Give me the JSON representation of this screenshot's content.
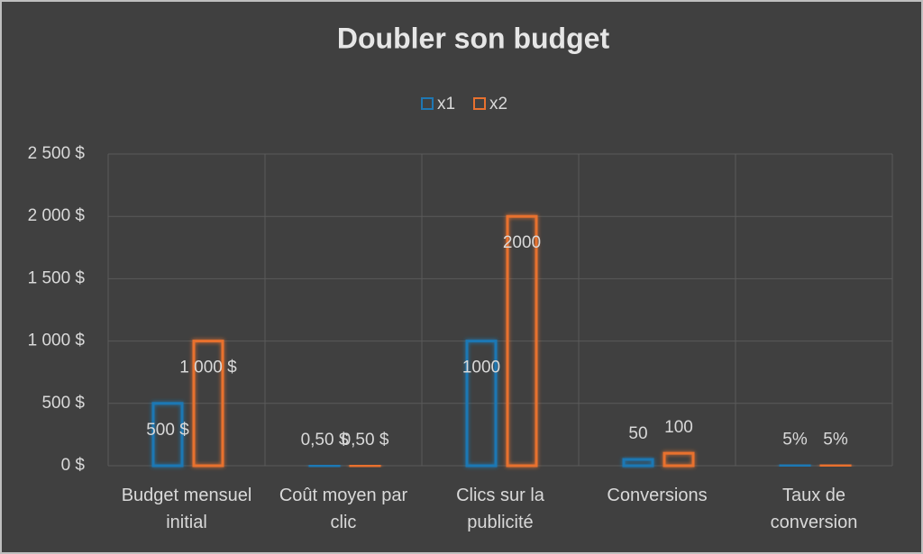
{
  "chart_data": {
    "type": "bar",
    "title": "Doubler son budget",
    "categories": [
      "Budget mensuel initial",
      "Coût moyen par clic",
      "Clics sur la publicité",
      "Conversions",
      "Taux de conversion"
    ],
    "series": [
      {
        "name": "x1",
        "color": "#1f78b4",
        "values": [
          500,
          0.5,
          1000,
          50,
          5
        ],
        "value_labels": [
          "500 $",
          "0,50 $",
          "1000",
          "50",
          "5%"
        ]
      },
      {
        "name": "x2",
        "color": "#e8712f",
        "values": [
          1000,
          0.5,
          2000,
          100,
          5
        ],
        "value_labels": [
          "1 000 $",
          "0,50 $",
          "2000",
          "100",
          "5%"
        ]
      }
    ],
    "ylim": [
      0,
      2500
    ],
    "yticks": [
      {
        "value": 0,
        "label": "0 $"
      },
      {
        "value": 500,
        "label": "500 $"
      },
      {
        "value": 1000,
        "label": "1 000 $"
      },
      {
        "value": 1500,
        "label": "1 500 $"
      },
      {
        "value": 2000,
        "label": "2 000 $"
      },
      {
        "value": 2500,
        "label": "2 500 $"
      }
    ],
    "grid": true,
    "legend": "top"
  }
}
